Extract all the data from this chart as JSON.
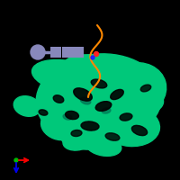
{
  "bg_color": "#000000",
  "protein_color": "#00C87A",
  "protein_dark": "#009955",
  "ligand_color": "#8888BB",
  "chain_color": "#FF8800",
  "axis_x_color": "#FF0000",
  "axis_y_color": "#0000EE",
  "axis_green_color": "#00BB00",
  "fig_w": 2.0,
  "fig_h": 2.0,
  "dpi": 100
}
